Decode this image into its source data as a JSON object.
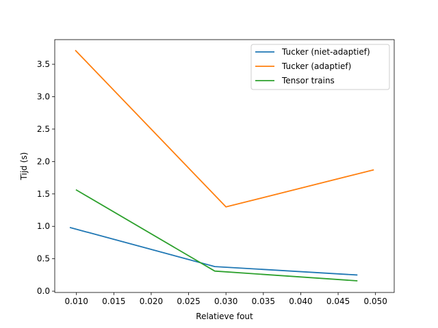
{
  "chart_data": {
    "type": "line",
    "title": "",
    "xlabel": "Relatieve fout",
    "ylabel": "Tijd (s)",
    "xlim": [
      0.0071,
      0.0525
    ],
    "ylim": [
      -0.02,
      3.88
    ],
    "xticks": [
      0.01,
      0.015,
      0.02,
      0.025,
      0.03,
      0.035,
      0.04,
      0.045,
      0.05
    ],
    "xtick_labels": [
      "0.010",
      "0.015",
      "0.020",
      "0.025",
      "0.030",
      "0.035",
      "0.040",
      "0.045",
      "0.050"
    ],
    "yticks": [
      0.0,
      0.5,
      1.0,
      1.5,
      2.0,
      2.5,
      3.0,
      3.5
    ],
    "ytick_labels": [
      "0.0",
      "0.5",
      "1.0",
      "1.5",
      "2.0",
      "2.5",
      "3.0",
      "3.5"
    ],
    "grid": false,
    "legend_position": "top-right",
    "series": [
      {
        "name": "Tucker (niet-adaptief)",
        "color": "#1f77b4",
        "x": [
          0.0092,
          0.0285,
          0.0475
        ],
        "y": [
          0.98,
          0.38,
          0.25
        ]
      },
      {
        "name": "Tucker (adaptief)",
        "color": "#ff7f0e",
        "x": [
          0.0099,
          0.03,
          0.0497
        ],
        "y": [
          3.71,
          1.3,
          1.87
        ]
      },
      {
        "name": "Tensor trains",
        "color": "#2ca02c",
        "x": [
          0.01,
          0.0285,
          0.0475
        ],
        "y": [
          1.56,
          0.31,
          0.16
        ]
      }
    ]
  }
}
